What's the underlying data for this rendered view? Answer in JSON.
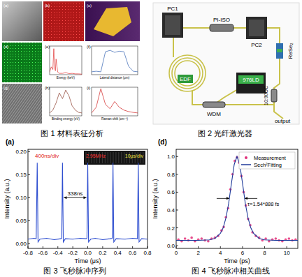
{
  "figure1": {
    "caption": "图 1 材料表征分析",
    "panel_labels": [
      "(a)",
      "(b)",
      "(c)",
      "(d)",
      "(e)",
      "(f)",
      "(g)",
      "(h)",
      "(i)"
    ]
  },
  "figure2": {
    "caption": "图 2 光纤激光器",
    "components": [
      "PC1",
      "PI-ISO",
      "PC2",
      "ReSe₂",
      "EDF",
      "WDM",
      "976LD",
      "10:90OC",
      "output"
    ]
  },
  "chart_data": [
    {
      "type": "line",
      "x_label": "Energy (keV)",
      "tick_labels": false,
      "xlim": [
        0,
        10
      ],
      "ylim": [
        0,
        1.1
      ],
      "series": [
        {
          "color": "#e03030",
          "x": [
            0,
            0.5,
            1,
            1.3,
            1.5,
            1.8,
            2,
            2.5,
            3,
            4,
            5,
            6,
            7,
            8,
            9,
            10
          ],
          "values": [
            0.1,
            0.3,
            0.2,
            1.0,
            0.3,
            0.15,
            0.6,
            0.1,
            0.05,
            0.05,
            0.08,
            0.04,
            0.05,
            0.03,
            0.03,
            0.02
          ]
        }
      ]
    },
    {
      "type": "line",
      "x_label": "Lateral distance (μm)",
      "tick_labels": false,
      "xlim": [
        0,
        10
      ],
      "ylim": [
        0,
        1
      ],
      "series": [
        {
          "color": "#3060b0",
          "x": [
            0,
            1,
            2,
            3,
            4,
            5,
            6,
            7,
            8,
            9,
            10
          ],
          "values": [
            0.1,
            0.12,
            0.1,
            0.8,
            0.85,
            0.78,
            0.82,
            0.8,
            0.3,
            0.12,
            0.1
          ]
        }
      ]
    },
    {
      "type": "line",
      "x_label": "Binding energy (eV)",
      "tick_labels": false,
      "xlim": [
        40,
        60
      ],
      "ylim": [
        0,
        1
      ],
      "series": [
        {
          "color": "#8a3a2a",
          "x": [
            40,
            42,
            44,
            46,
            48,
            50,
            52,
            54,
            56,
            58,
            60
          ],
          "values": [
            0.1,
            0.2,
            0.45,
            0.8,
            0.6,
            0.9,
            0.7,
            0.35,
            0.2,
            0.12,
            0.1
          ]
        }
      ]
    },
    {
      "type": "line",
      "x_label": "Raman shift (cm⁻¹)",
      "tick_labels": false,
      "xlim": [
        100,
        300
      ],
      "ylim": [
        0,
        1
      ],
      "series": [
        {
          "color": "#d02020",
          "x": [
            100,
            120,
            140,
            160,
            180,
            200,
            220,
            240,
            260,
            280,
            300
          ],
          "values": [
            0.1,
            0.3,
            0.95,
            0.4,
            0.25,
            0.5,
            0.3,
            0.2,
            0.15,
            0.12,
            0.1
          ]
        }
      ]
    },
    {
      "type": "line",
      "title": "图 3 飞秒脉冲序列",
      "x_label": "Time (μs)",
      "y_label": "Intensity (a.u.)",
      "annotations": [
        "(a)",
        "400ns/div",
        "338ns"
      ],
      "inset": {
        "labels": [
          "2.95MHz",
          "10μs/div"
        ]
      },
      "xlim": [
        -0.8,
        0.8
      ],
      "ylim": [
        -0.01,
        0.205
      ],
      "xticks": [
        -0.8,
        -0.6,
        -0.4,
        -0.2,
        {
          "value": 0,
          "label": "0.0"
        },
        0.2,
        0.4,
        0.6,
        0.8
      ],
      "yticks": [
        {
          "value": 0,
          "label": "0.00"
        },
        0.05,
        {
          "value": 0.1,
          "label": "0.10"
        },
        0.15,
        {
          "value": 0.2,
          "label": "0.20"
        }
      ],
      "series": [
        {
          "color": "#2f4fd0",
          "x": [
            -0.8,
            -0.72,
            -0.69,
            -0.676,
            -0.665,
            -0.64,
            -0.55,
            -0.45,
            -0.36,
            -0.348,
            -0.338,
            -0.327,
            -0.3,
            -0.2,
            -0.1,
            -0.02,
            -0.01,
            0,
            0.011,
            0.04,
            0.1,
            0.2,
            0.3,
            0.328,
            0.338,
            0.349,
            0.38,
            0.5,
            0.6,
            0.666,
            0.676,
            0.687,
            0.72,
            0.8
          ],
          "values": [
            0.01,
            0.012,
            0.011,
            0.176,
            0.004,
            0.01,
            0.012,
            0.009,
            0.011,
            0.012,
            0.176,
            0.004,
            0.011,
            0.01,
            0.012,
            0.011,
            0.012,
            0.176,
            0.004,
            0.01,
            0.012,
            0.009,
            0.011,
            0.012,
            0.176,
            0.004,
            0.011,
            0.01,
            0.012,
            0.011,
            0.176,
            0.004,
            0.011,
            0.01
          ]
        }
      ]
    },
    {
      "type": "line",
      "title": "图 4 飞秒脉冲相关曲线",
      "x_label": "Time (ps)",
      "y_label": "Intensity (a.u.)",
      "annotations": [
        "(d)",
        "τ=1.54*888 fs"
      ],
      "legend": "upper right",
      "xlim": [
        0,
        11
      ],
      "ylim": [
        -0.03,
        1.08
      ],
      "xticks": [
        0,
        2,
        4,
        6,
        8,
        10
      ],
      "yticks": [
        {
          "value": 0,
          "label": "0.0"
        },
        0.2,
        0.4,
        0.6,
        0.8,
        {
          "value": 1,
          "label": "1.0"
        }
      ],
      "series": [
        {
          "name": "Measurement",
          "type": "scatter",
          "marker": "circle",
          "color": "#e0307a",
          "x": [
            0.2,
            0.5,
            0.8,
            1.1,
            1.4,
            1.7,
            2.0,
            2.3,
            2.6,
            2.9,
            3.2,
            3.5,
            3.8,
            4.1,
            4.3,
            4.5,
            4.7,
            4.9,
            5.1,
            5.3,
            5.5,
            5.7,
            5.9,
            6.1,
            6.3,
            6.5,
            6.7,
            6.9,
            7.2,
            7.5,
            7.8,
            8.1,
            8.4,
            8.7,
            9.0,
            9.3,
            9.6,
            9.9,
            10.2,
            10.5,
            10.8
          ],
          "values": [
            0.07,
            0.05,
            0.08,
            0.06,
            0.09,
            0.05,
            0.07,
            0.08,
            0.06,
            0.05,
            0.08,
            0.09,
            0.11,
            0.17,
            0.21,
            0.32,
            0.42,
            0.63,
            0.8,
            0.95,
            0.99,
            0.93,
            0.78,
            0.6,
            0.45,
            0.3,
            0.23,
            0.15,
            0.11,
            0.09,
            0.06,
            0.08,
            0.05,
            0.07,
            0.08,
            0.06,
            0.05,
            0.07,
            0.08,
            0.06,
            0.07
          ]
        },
        {
          "name": "Sech²Fitting",
          "type": "line",
          "line_style": "solid",
          "color": "#1f3a9a",
          "x": [
            0,
            1,
            2,
            3,
            3.5,
            4,
            4.25,
            4.5,
            4.75,
            5,
            5.25,
            5.5,
            5.75,
            6,
            6.25,
            6.5,
            6.75,
            7,
            7.5,
            8,
            9,
            10,
            11
          ],
          "values": [
            0.06,
            0.06,
            0.06,
            0.066,
            0.082,
            0.138,
            0.2,
            0.31,
            0.477,
            0.7,
            0.91,
            1.0,
            0.91,
            0.7,
            0.477,
            0.31,
            0.2,
            0.138,
            0.082,
            0.066,
            0.06,
            0.06,
            0.06
          ]
        }
      ]
    }
  ]
}
